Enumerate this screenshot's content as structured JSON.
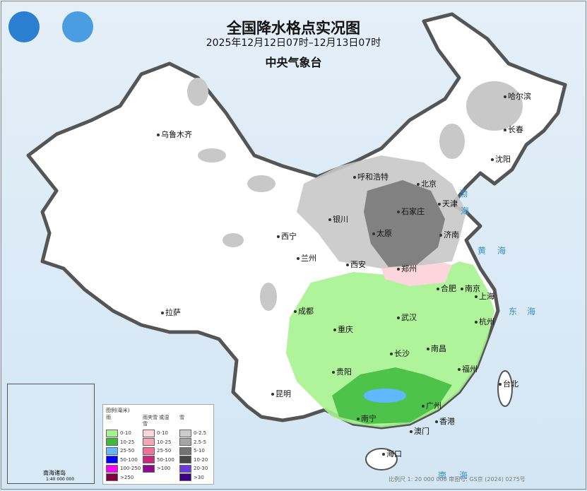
{
  "title": "全国降水格点实况图",
  "period": "2025年12月12日07时–12月13日07时",
  "agency": "中央气象台",
  "logos": [
    "cma-logo",
    "nmc-logo"
  ],
  "cities": [
    {
      "n": "哈尔滨"
    },
    {
      "n": "长春"
    },
    {
      "n": "沈阳"
    },
    {
      "n": "乌鲁木齐"
    },
    {
      "n": "呼和浩特"
    },
    {
      "n": "北京"
    },
    {
      "n": "天津"
    },
    {
      "n": "石家庄"
    },
    {
      "n": "太原"
    },
    {
      "n": "济南"
    },
    {
      "n": "银川"
    },
    {
      "n": "西宁"
    },
    {
      "n": "兰州"
    },
    {
      "n": "西安"
    },
    {
      "n": "郑州"
    },
    {
      "n": "合肥"
    },
    {
      "n": "南京"
    },
    {
      "n": "上海"
    },
    {
      "n": "拉萨"
    },
    {
      "n": "成都"
    },
    {
      "n": "武汉"
    },
    {
      "n": "杭州"
    },
    {
      "n": "重庆"
    },
    {
      "n": "长沙"
    },
    {
      "n": "南昌"
    },
    {
      "n": "福州"
    },
    {
      "n": "台北"
    },
    {
      "n": "贵阳"
    },
    {
      "n": "昆明"
    },
    {
      "n": "广州"
    },
    {
      "n": "南宁"
    },
    {
      "n": "香港"
    },
    {
      "n": "澳门"
    },
    {
      "n": "海口"
    }
  ],
  "seas": [
    "渤",
    "海",
    "黄",
    "海",
    "东",
    "海",
    "南",
    "海"
  ],
  "legend": {
    "title": "图例(毫米)",
    "rain": {
      "label": "雨",
      "items": [
        {
          "r": "0-10",
          "c": "#a6f28f"
        },
        {
          "r": "10-25",
          "c": "#3dba3d"
        },
        {
          "r": "25-50",
          "c": "#61b8ff"
        },
        {
          "r": "50-100",
          "c": "#0000ff"
        },
        {
          "r": "100-250",
          "c": "#fa00fa"
        },
        {
          "r": ">250",
          "c": "#800040"
        }
      ]
    },
    "sleet": {
      "label": "雨夹雪 或湿雪",
      "items": [
        {
          "r": "0-10",
          "c": "#fcd6dc"
        },
        {
          "r": "10-25",
          "c": "#f7a6b6"
        },
        {
          "r": "25-50",
          "c": "#f2709a"
        },
        {
          "r": "50-100",
          "c": "#c8287e"
        },
        {
          "r": ">100",
          "c": "#8c0a8c"
        }
      ]
    },
    "snow": {
      "label": "雪",
      "items": [
        {
          "r": "0-2.5",
          "c": "#cccccc"
        },
        {
          "r": "2.5-5",
          "c": "#a6a6a6"
        },
        {
          "r": "5-10",
          "c": "#737373"
        },
        {
          "r": "10-20",
          "c": "#484848"
        },
        {
          "r": "20-30",
          "c": "#6a3ae0"
        },
        {
          "r": ">30",
          "c": "#3c0080"
        }
      ]
    }
  },
  "inset": {
    "title": "南海诸岛",
    "scale": "1:40 000 000"
  },
  "footer": "比例尺 1: 20 000 000    审图号: GS京 (2024) 0275号"
}
